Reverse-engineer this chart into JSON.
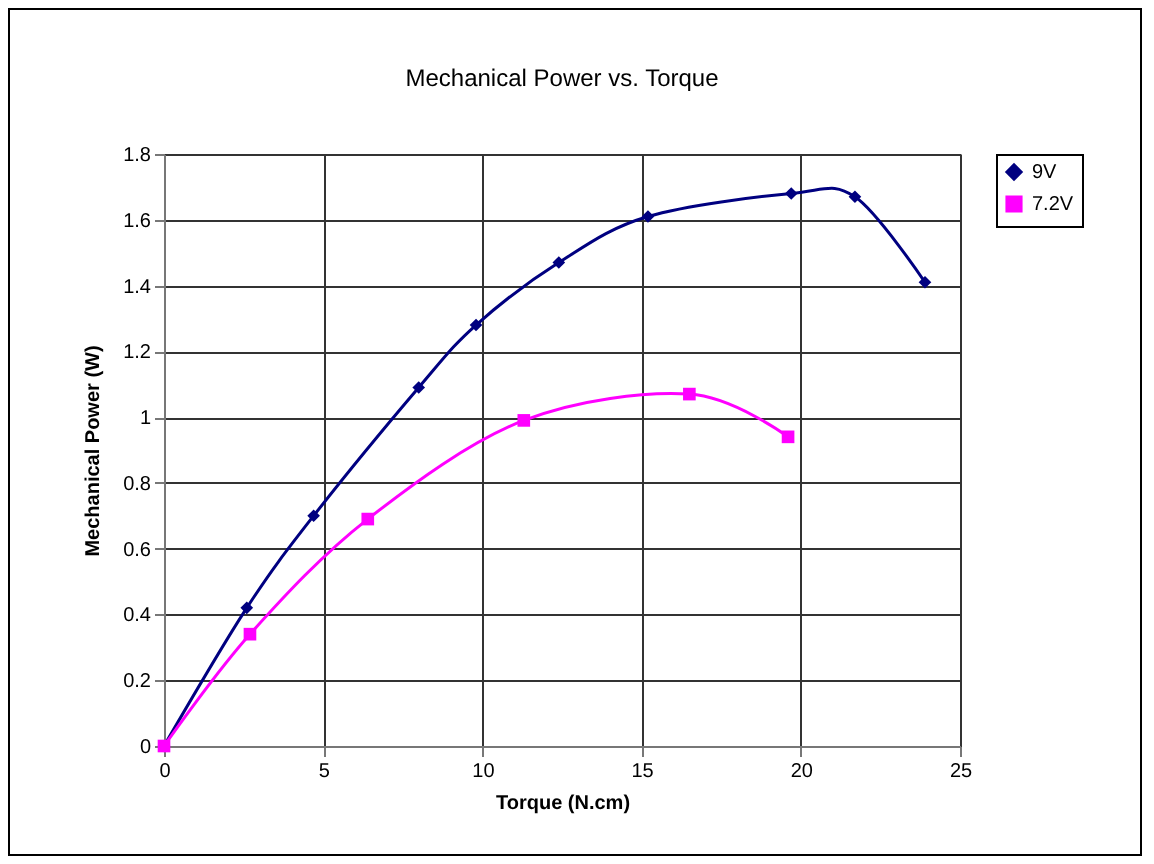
{
  "chart_data": {
    "type": "line",
    "title": "Mechanical Power vs. Torque",
    "xlabel": "Torque (N.cm)",
    "ylabel": "Mechanical Power (W)",
    "xlim": [
      0,
      25
    ],
    "xticks": [
      0,
      5,
      10,
      15,
      20,
      25
    ],
    "ylim": [
      0,
      1.8
    ],
    "yticks": [
      0,
      0.2,
      0.4,
      0.6,
      0.8,
      1,
      1.2,
      1.4,
      1.6,
      1.8
    ],
    "grid": true,
    "legend": "right",
    "series": [
      {
        "name": "9V",
        "color": "#000080",
        "marker": "diamond",
        "x": [
          0,
          2.6,
          4.7,
          8.0,
          9.8,
          12.4,
          15.2,
          19.7,
          21.7,
          23.9
        ],
        "values": [
          0,
          0.42,
          0.7,
          1.09,
          1.28,
          1.47,
          1.61,
          1.68,
          1.67,
          1.41
        ]
      },
      {
        "name": "7.2V",
        "color": "#ff00ff",
        "marker": "square",
        "x": [
          0,
          2.7,
          6.4,
          11.3,
          16.5,
          19.6
        ],
        "values": [
          0,
          0.34,
          0.69,
          0.99,
          1.07,
          0.94
        ]
      }
    ]
  }
}
